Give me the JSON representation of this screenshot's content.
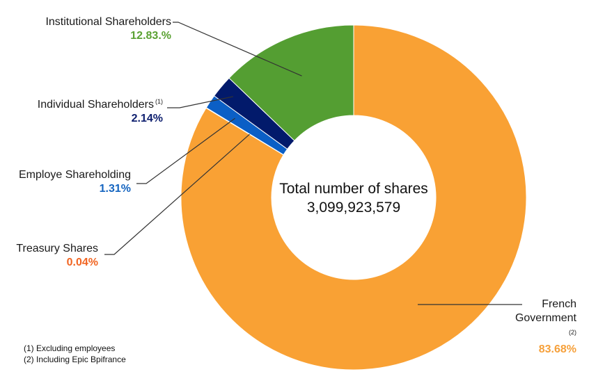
{
  "chart_data": {
    "type": "pie",
    "variant": "donut",
    "center_label": "Total number of shares",
    "center_value": "3,099,923,579",
    "slices": [
      {
        "name": "French Government",
        "note": "(2)",
        "value": 83.68,
        "display": "83.68%",
        "color": "#F9A134",
        "label_color": "#F6A03A"
      },
      {
        "name": "Treasury Shares",
        "note": "",
        "value": 0.04,
        "display": "0.04%",
        "color": "#F15A29",
        "label_color": "#F16522"
      },
      {
        "name": "Employe Shareholding",
        "note": "",
        "value": 1.31,
        "display": "1.31%",
        "color": "#0B5FC6",
        "label_color": "#1565C0"
      },
      {
        "name": "Individual Shareholders",
        "note": "(1)",
        "value": 2.14,
        "display": "2.14%",
        "color": "#021A6B",
        "label_color": "#0D1E6E"
      },
      {
        "name": "Institutional Shareholders",
        "note": "",
        "value": 12.83,
        "display": "12.83.%",
        "color": "#549E32",
        "label_color": "#5BA233"
      }
    ],
    "start_angle": "top",
    "direction": "clockwise"
  },
  "footnotes": [
    "(1) Excluding employees",
    "(2) Including Epic Bpifrance"
  ]
}
